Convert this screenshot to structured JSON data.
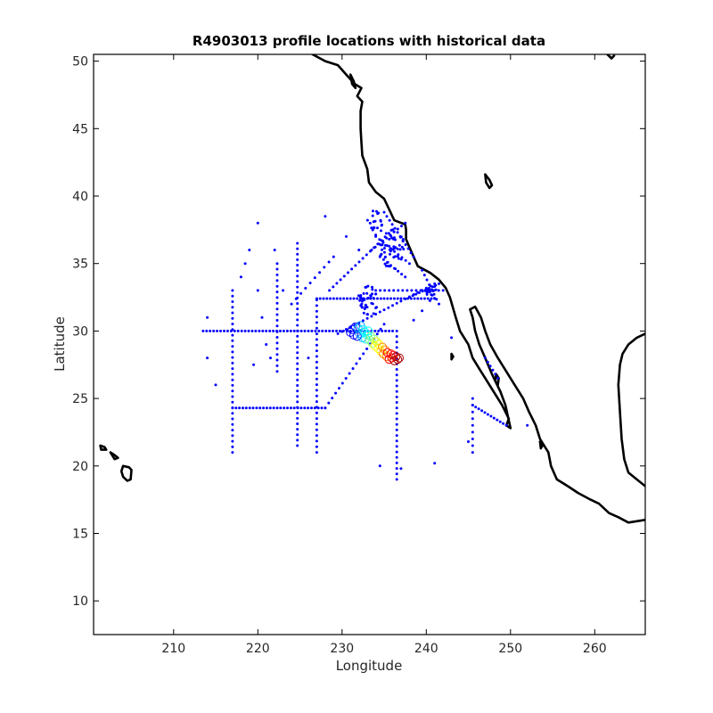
{
  "chart_data": {
    "type": "scatter",
    "title": "R4903013 profile locations with historical data",
    "xlabel": "Longitude",
    "ylabel": "Latitude",
    "xlim": [
      200.5,
      266
    ],
    "ylim": [
      7.5,
      50.5
    ],
    "xticks": [
      210,
      220,
      230,
      240,
      250,
      260
    ],
    "yticks": [
      10,
      15,
      20,
      25,
      30,
      35,
      40,
      45,
      50
    ],
    "grid": false,
    "colors": {
      "historical": "#0000ff",
      "coastline": "#000000",
      "axes": "#000000"
    },
    "float_track_colormap": [
      "#0000ff",
      "#00a0ff",
      "#00ffff",
      "#80ff80",
      "#ffff00",
      "#ff8000",
      "#ff0000",
      "#b00000"
    ],
    "float_track": [
      [
        231.0,
        29.9
      ],
      [
        231.2,
        30.1
      ],
      [
        231.4,
        29.7
      ],
      [
        231.6,
        30.3
      ],
      [
        231.8,
        29.6
      ],
      [
        231.9,
        30.2
      ],
      [
        232.1,
        29.8
      ],
      [
        232.2,
        30.4
      ],
      [
        232.4,
        29.5
      ],
      [
        232.5,
        30.1
      ],
      [
        232.7,
        29.9
      ],
      [
        232.8,
        29.4
      ],
      [
        233.0,
        29.7
      ],
      [
        233.1,
        30.0
      ],
      [
        233.3,
        29.3
      ],
      [
        233.4,
        29.6
      ],
      [
        233.6,
        29.1
      ],
      [
        233.8,
        29.4
      ],
      [
        233.9,
        28.9
      ],
      [
        234.1,
        29.2
      ],
      [
        234.3,
        28.7
      ],
      [
        234.4,
        29.0
      ],
      [
        234.6,
        28.5
      ],
      [
        234.8,
        28.8
      ],
      [
        234.9,
        28.3
      ],
      [
        235.1,
        28.6
      ],
      [
        235.3,
        28.1
      ],
      [
        235.4,
        28.4
      ],
      [
        235.6,
        27.9
      ],
      [
        235.8,
        28.3
      ],
      [
        235.9,
        28.0
      ],
      [
        236.1,
        28.2
      ],
      [
        236.2,
        27.8
      ],
      [
        236.4,
        28.1
      ],
      [
        236.6,
        27.9
      ],
      [
        236.8,
        28.0
      ]
    ],
    "historical_segments": [
      {
        "from": [
          213.5,
          30.0
        ],
        "to": [
          236.0,
          30.0
        ],
        "n": 55
      },
      {
        "from": [
          217.0,
          24.3
        ],
        "to": [
          228.0,
          24.3
        ],
        "n": 28
      },
      {
        "from": [
          217.0,
          33.0
        ],
        "to": [
          217.0,
          21.0
        ],
        "n": 30
      },
      {
        "from": [
          222.3,
          35.0
        ],
        "to": [
          222.3,
          27.0
        ],
        "n": 20
      },
      {
        "from": [
          224.7,
          36.5
        ],
        "to": [
          224.7,
          21.5
        ],
        "n": 38
      },
      {
        "from": [
          227.0,
          32.3
        ],
        "to": [
          227.0,
          21.0
        ],
        "n": 28
      },
      {
        "from": [
          227.0,
          32.4
        ],
        "to": [
          241.0,
          32.4
        ],
        "n": 36
      },
      {
        "from": [
          236.5,
          30.0
        ],
        "to": [
          236.5,
          19.0
        ],
        "n": 28
      },
      {
        "from": [
          228.0,
          24.3
        ],
        "to": [
          235.0,
          30.5
        ],
        "n": 18
      },
      {
        "from": [
          229.5,
          29.8
        ],
        "to": [
          241.0,
          33.5
        ],
        "n": 24
      },
      {
        "from": [
          234.0,
          33.0
        ],
        "to": [
          242.0,
          33.0
        ],
        "n": 16
      },
      {
        "from": [
          224.0,
          32.0
        ],
        "to": [
          229.0,
          35.5
        ],
        "n": 10
      },
      {
        "from": [
          228.5,
          33.0
        ],
        "to": [
          236.0,
          37.5
        ],
        "n": 18
      },
      {
        "from": [
          233.5,
          36.0
        ],
        "to": [
          237.5,
          38.0
        ],
        "n": 10
      },
      {
        "from": [
          234.0,
          37.0
        ],
        "to": [
          238.0,
          35.0
        ],
        "n": 10
      },
      {
        "from": [
          234.5,
          35.5
        ],
        "to": [
          237.5,
          34.0
        ],
        "n": 8
      },
      {
        "from": [
          235.0,
          38.8
        ],
        "to": [
          238.5,
          35.5
        ],
        "n": 12
      },
      {
        "from": [
          238.0,
          32.5
        ],
        "to": [
          241.5,
          33.5
        ],
        "n": 10
      },
      {
        "from": [
          239.5,
          34.5
        ],
        "to": [
          241.5,
          32.0
        ],
        "n": 8
      },
      {
        "from": [
          245.5,
          25.0
        ],
        "to": [
          245.5,
          21.0
        ],
        "n": 9
      },
      {
        "from": [
          245.5,
          24.5
        ],
        "to": [
          249.5,
          23.0
        ],
        "n": 12
      },
      {
        "from": [
          247.0,
          28.0
        ],
        "to": [
          248.5,
          26.5
        ],
        "n": 6
      }
    ],
    "historical_clusters": [
      {
        "center": [
          233.0,
          32.2
        ],
        "radius": 1.2,
        "n": 40
      },
      {
        "center": [
          236.0,
          36.0
        ],
        "radius": 1.5,
        "n": 50
      },
      {
        "center": [
          234.0,
          38.0
        ],
        "radius": 1.0,
        "n": 20
      },
      {
        "center": [
          240.5,
          32.8
        ],
        "radius": 0.8,
        "n": 15
      }
    ],
    "historical_points": [
      [
        214.0,
        31.0
      ],
      [
        214.0,
        28.0
      ],
      [
        215.0,
        26.0
      ],
      [
        218.0,
        34.0
      ],
      [
        218.5,
        35.0
      ],
      [
        219.0,
        36.0
      ],
      [
        220.0,
        33.0
      ],
      [
        220.5,
        31.0
      ],
      [
        221.0,
        29.0
      ],
      [
        221.5,
        28.0
      ],
      [
        219.5,
        27.5
      ],
      [
        220.0,
        38.0
      ],
      [
        222.0,
        36.0
      ],
      [
        223.0,
        33.0
      ],
      [
        226.0,
        28.0
      ],
      [
        228.0,
        38.5
      ],
      [
        230.5,
        37.0
      ],
      [
        232.0,
        36.0
      ],
      [
        243.0,
        29.5
      ],
      [
        245.0,
        21.8
      ],
      [
        234.5,
        20.0
      ],
      [
        237.0,
        19.8
      ],
      [
        241.0,
        20.2
      ],
      [
        252.0,
        23.0
      ],
      [
        239.5,
        31.5
      ],
      [
        238.5,
        30.8
      ]
    ],
    "coastlines": [
      [
        [
          226.5,
          50.5
        ],
        [
          228.0,
          50.0
        ],
        [
          229.5,
          49.7
        ],
        [
          230.5,
          49.0
        ],
        [
          231.5,
          48.3
        ],
        [
          232.3,
          48.0
        ],
        [
          231.8,
          47.4
        ],
        [
          232.4,
          47.0
        ],
        [
          232.2,
          46.3
        ],
        [
          232.2,
          45.0
        ],
        [
          232.3,
          44.0
        ],
        [
          232.4,
          43.0
        ],
        [
          233.0,
          42.0
        ],
        [
          233.2,
          41.0
        ],
        [
          234.0,
          40.3
        ],
        [
          235.0,
          39.8
        ],
        [
          235.6,
          39.0
        ],
        [
          236.2,
          38.2
        ],
        [
          237.5,
          37.9
        ],
        [
          237.6,
          37.5
        ],
        [
          237.6,
          36.8
        ],
        [
          238.0,
          36.2
        ],
        [
          238.5,
          35.5
        ],
        [
          239.0,
          34.8
        ],
        [
          240.5,
          34.3
        ],
        [
          241.5,
          33.8
        ],
        [
          242.3,
          33.2
        ],
        [
          242.8,
          32.5
        ],
        [
          243.5,
          31.0
        ],
        [
          244.0,
          30.0
        ],
        [
          245.0,
          29.0
        ],
        [
          245.5,
          28.0
        ],
        [
          246.3,
          27.2
        ],
        [
          247.0,
          26.5
        ],
        [
          248.0,
          25.5
        ],
        [
          249.0,
          24.5
        ],
        [
          249.8,
          23.5
        ],
        [
          249.5,
          23.0
        ],
        [
          250.0,
          22.8
        ],
        [
          249.4,
          24.5
        ],
        [
          248.8,
          25.5
        ],
        [
          247.8,
          26.8
        ],
        [
          247.0,
          28.0
        ],
        [
          246.3,
          29.0
        ],
        [
          245.8,
          30.0
        ],
        [
          245.5,
          31.0
        ],
        [
          245.2,
          31.6
        ],
        [
          245.8,
          31.8
        ],
        [
          246.5,
          31.0
        ],
        [
          247.0,
          30.0
        ],
        [
          247.6,
          29.0
        ],
        [
          248.5,
          28.0
        ],
        [
          249.5,
          27.0
        ],
        [
          250.5,
          26.0
        ],
        [
          251.5,
          25.0
        ],
        [
          252.2,
          24.0
        ],
        [
          253.0,
          23.0
        ],
        [
          253.5,
          22.0
        ],
        [
          254.5,
          21.0
        ],
        [
          254.8,
          20.0
        ],
        [
          255.5,
          19.0
        ],
        [
          256.8,
          18.5
        ],
        [
          258.0,
          18.0
        ],
        [
          259.5,
          17.5
        ],
        [
          260.5,
          17.2
        ],
        [
          261.7,
          16.5
        ],
        [
          262.8,
          16.2
        ],
        [
          264.0,
          15.8
        ],
        [
          265.0,
          15.9
        ],
        [
          266.0,
          16.0
        ]
      ],
      [
        [
          266.0,
          18.5
        ],
        [
          265.0,
          19.0
        ],
        [
          264.0,
          19.5
        ],
        [
          263.5,
          20.5
        ],
        [
          263.2,
          22.0
        ],
        [
          263.0,
          24.0
        ],
        [
          262.8,
          26.0
        ],
        [
          263.0,
          27.5
        ],
        [
          263.3,
          28.3
        ],
        [
          264.0,
          29.0
        ],
        [
          265.0,
          29.5
        ],
        [
          266.0,
          29.8
        ]
      ],
      [
        [
          248.3,
          26.8
        ],
        [
          248.6,
          26.5
        ],
        [
          248.5,
          26.0
        ],
        [
          248.2,
          26.3
        ],
        [
          248.3,
          26.8
        ]
      ],
      [
        [
          247.0,
          41.6
        ],
        [
          247.5,
          41.2
        ],
        [
          247.8,
          40.8
        ],
        [
          247.5,
          40.6
        ],
        [
          247.1,
          41.0
        ],
        [
          247.0,
          41.6
        ]
      ],
      [
        [
          204.0,
          20.0
        ],
        [
          204.7,
          19.9
        ],
        [
          205.0,
          19.7
        ],
        [
          204.9,
          19.0
        ],
        [
          204.5,
          18.9
        ],
        [
          204.0,
          19.2
        ],
        [
          203.8,
          19.6
        ],
        [
          204.0,
          20.0
        ]
      ],
      [
        [
          201.3,
          21.5
        ],
        [
          201.8,
          21.4
        ],
        [
          202.0,
          21.2
        ],
        [
          201.4,
          21.2
        ],
        [
          201.3,
          21.5
        ]
      ],
      [
        [
          202.5,
          21.0
        ],
        [
          203.0,
          20.8
        ],
        [
          203.4,
          20.6
        ],
        [
          203.0,
          20.5
        ],
        [
          202.5,
          21.0
        ]
      ],
      [
        [
          231.0,
          49.0
        ],
        [
          231.4,
          48.5
        ],
        [
          231.6,
          48.0
        ],
        [
          231.2,
          48.3
        ],
        [
          231.0,
          49.0
        ]
      ],
      [
        [
          243.0,
          28.3
        ],
        [
          243.2,
          28.1
        ],
        [
          243.0,
          27.9
        ],
        [
          243.0,
          28.3
        ]
      ],
      [
        [
          253.5,
          21.8
        ],
        [
          253.8,
          21.5
        ],
        [
          253.6,
          21.3
        ],
        [
          253.5,
          21.8
        ]
      ],
      [
        [
          261.5,
          50.5
        ],
        [
          262.0,
          50.2
        ],
        [
          262.3,
          50.4
        ]
      ]
    ]
  }
}
